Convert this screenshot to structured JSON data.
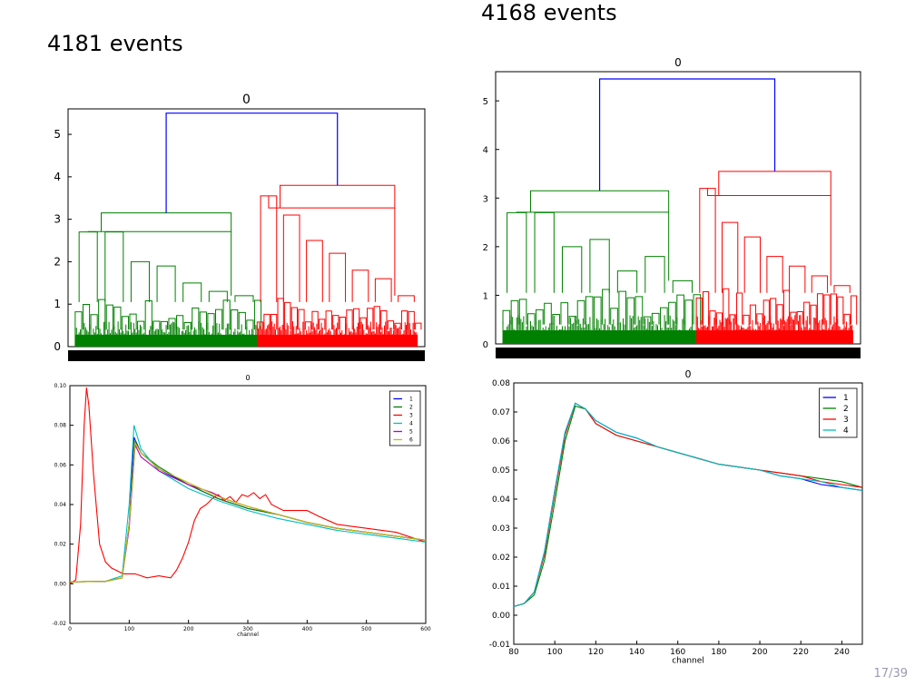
{
  "slide": {
    "left_title": "4181 events",
    "right_title": "4168 events",
    "page_number": "17/39"
  },
  "colors": {
    "link": "#0000ff",
    "cluster_a": "#008000",
    "cluster_b": "#ff0000",
    "s1": "#0000ff",
    "s2": "#008000",
    "s3": "#ff0000",
    "s4": "#00bfbf",
    "s5": "#bf00bf",
    "s6": "#bfbf00"
  },
  "chart_data": [
    {
      "type": "dendrogram",
      "title": "0",
      "ylim": [
        0,
        5.6
      ],
      "yticks": [
        "0",
        "1",
        "2",
        "3",
        "4",
        "5"
      ],
      "root_height": 5.5,
      "left_height": 3.15,
      "left_span": [
        0.02,
        0.55
      ],
      "left_top_x": 0.22,
      "right_height": 3.8,
      "right_span": [
        0.53,
        0.98
      ],
      "right_top_x": 0.59,
      "split_x": 0.53,
      "clusters": [
        {
          "name": "green",
          "color_key": "cluster_a",
          "heights": [
            2.7,
            2.7,
            2.0,
            1.9,
            1.5,
            1.3,
            1.2
          ]
        },
        {
          "name": "red",
          "color_key": "cluster_b",
          "heights": [
            3.55,
            3.1,
            2.5,
            2.2,
            1.8,
            1.6,
            1.2
          ]
        }
      ]
    },
    {
      "type": "dendrogram",
      "title": "0",
      "ylim": [
        0,
        5.6
      ],
      "yticks": [
        "0",
        "1",
        "2",
        "3",
        "4",
        "5"
      ],
      "root_height": 5.45,
      "left_height": 3.15,
      "left_span": [
        0.02,
        0.55
      ],
      "left_top_x": 0.23,
      "right_height": 3.55,
      "right_span": [
        0.55,
        0.98
      ],
      "right_top_x": 0.69,
      "split_x": 0.55,
      "clusters": [
        {
          "name": "green",
          "color_key": "cluster_a",
          "heights": [
            2.7,
            2.7,
            2.0,
            2.15,
            1.5,
            1.8,
            1.3
          ]
        },
        {
          "name": "red",
          "color_key": "cluster_b",
          "heights": [
            3.2,
            2.5,
            2.2,
            1.8,
            1.6,
            1.4,
            1.2
          ]
        }
      ]
    },
    {
      "type": "line",
      "title": "0",
      "xlabel": "channel",
      "ylabel": "",
      "xlim": [
        0,
        600
      ],
      "ylim": [
        -0.02,
        0.1
      ],
      "xticks": [
        0,
        100,
        200,
        300,
        400,
        500,
        600
      ],
      "yticks": [
        -0.02,
        0.0,
        0.02,
        0.04,
        0.06,
        0.08,
        0.1
      ],
      "ytick_labels": [
        "-0.02",
        "0.00",
        "0.02",
        "0.04",
        "0.06",
        "0.08",
        "0.10"
      ],
      "legend": "top-right",
      "series": [
        {
          "name": "1",
          "color_key": "s1",
          "points": [
            [
              0,
              0.001
            ],
            [
              60,
              0.0012
            ],
            [
              88,
              0.003
            ],
            [
              100,
              0.03
            ],
            [
              108,
              0.074
            ],
            [
              120,
              0.066
            ],
            [
              150,
              0.058
            ],
            [
              200,
              0.05
            ],
            [
              250,
              0.043
            ],
            [
              300,
              0.038
            ],
            [
              350,
              0.035
            ],
            [
              400,
              0.031
            ],
            [
              450,
              0.028
            ],
            [
              500,
              0.026
            ],
            [
              550,
              0.024
            ],
            [
              600,
              0.022
            ]
          ]
        },
        {
          "name": "2",
          "color_key": "s2",
          "points": [
            [
              0,
              0.001
            ],
            [
              60,
              0.0012
            ],
            [
              88,
              0.003
            ],
            [
              100,
              0.03
            ],
            [
              110,
              0.072
            ],
            [
              120,
              0.066
            ],
            [
              150,
              0.059
            ],
            [
              200,
              0.05
            ],
            [
              250,
              0.043
            ],
            [
              300,
              0.038
            ],
            [
              350,
              0.035
            ],
            [
              400,
              0.031
            ],
            [
              450,
              0.028
            ],
            [
              500,
              0.026
            ],
            [
              550,
              0.024
            ],
            [
              600,
              0.022
            ]
          ]
        },
        {
          "name": "3",
          "color_key": "s3",
          "points": [
            [
              0,
              0.0
            ],
            [
              10,
              0.002
            ],
            [
              18,
              0.03
            ],
            [
              24,
              0.08
            ],
            [
              28,
              0.099
            ],
            [
              32,
              0.09
            ],
            [
              40,
              0.055
            ],
            [
              50,
              0.02
            ],
            [
              60,
              0.011
            ],
            [
              70,
              0.008
            ],
            [
              90,
              0.005
            ],
            [
              110,
              0.005
            ],
            [
              130,
              0.003
            ],
            [
              150,
              0.004
            ],
            [
              170,
              0.003
            ],
            [
              180,
              0.007
            ],
            [
              190,
              0.013
            ],
            [
              200,
              0.021
            ],
            [
              210,
              0.032
            ],
            [
              220,
              0.038
            ],
            [
              230,
              0.04
            ],
            [
              240,
              0.043
            ],
            [
              250,
              0.045
            ],
            [
              260,
              0.042
            ],
            [
              270,
              0.044
            ],
            [
              280,
              0.041
            ],
            [
              290,
              0.045
            ],
            [
              300,
              0.044
            ],
            [
              310,
              0.046
            ],
            [
              320,
              0.043
            ],
            [
              330,
              0.045
            ],
            [
              340,
              0.04
            ],
            [
              360,
              0.037
            ],
            [
              380,
              0.037
            ],
            [
              400,
              0.037
            ],
            [
              420,
              0.034
            ],
            [
              450,
              0.03
            ],
            [
              500,
              0.028
            ],
            [
              550,
              0.026
            ],
            [
              600,
              0.021
            ]
          ]
        },
        {
          "name": "4",
          "color_key": "s4",
          "points": [
            [
              0,
              0.001
            ],
            [
              60,
              0.0012
            ],
            [
              88,
              0.004
            ],
            [
              100,
              0.04
            ],
            [
              108,
              0.08
            ],
            [
              120,
              0.068
            ],
            [
              150,
              0.057
            ],
            [
              200,
              0.048
            ],
            [
              250,
              0.042
            ],
            [
              300,
              0.037
            ],
            [
              350,
              0.033
            ],
            [
              400,
              0.03
            ],
            [
              450,
              0.027
            ],
            [
              500,
              0.025
            ],
            [
              550,
              0.023
            ],
            [
              600,
              0.021
            ]
          ]
        },
        {
          "name": "5",
          "color_key": "s5",
          "points": [
            [
              0,
              0.001
            ],
            [
              60,
              0.0012
            ],
            [
              88,
              0.003
            ],
            [
              100,
              0.028
            ],
            [
              110,
              0.07
            ],
            [
              120,
              0.064
            ],
            [
              150,
              0.057
            ],
            [
              200,
              0.05
            ],
            [
              240,
              0.046
            ],
            [
              260,
              0.043
            ],
            [
              300,
              0.039
            ],
            [
              350,
              0.035
            ],
            [
              400,
              0.031
            ],
            [
              450,
              0.028
            ],
            [
              500,
              0.026
            ],
            [
              550,
              0.024
            ],
            [
              600,
              0.022
            ]
          ]
        },
        {
          "name": "6",
          "color_key": "s6",
          "points": [
            [
              0,
              0.001
            ],
            [
              60,
              0.0012
            ],
            [
              88,
              0.003
            ],
            [
              100,
              0.03
            ],
            [
              110,
              0.071
            ],
            [
              120,
              0.066
            ],
            [
              150,
              0.058
            ],
            [
              200,
              0.051
            ],
            [
              250,
              0.044
            ],
            [
              300,
              0.039
            ],
            [
              350,
              0.035
            ],
            [
              400,
              0.031
            ],
            [
              450,
              0.028
            ],
            [
              500,
              0.026
            ],
            [
              550,
              0.024
            ],
            [
              600,
              0.022
            ]
          ]
        }
      ]
    },
    {
      "type": "line",
      "title": "0",
      "xlabel": "channel",
      "ylabel": "",
      "xlim": [
        80,
        250
      ],
      "ylim": [
        -0.01,
        0.08
      ],
      "xticks": [
        80,
        100,
        120,
        140,
        160,
        180,
        200,
        220,
        240
      ],
      "yticks": [
        -0.01,
        0.0,
        0.01,
        0.02,
        0.03,
        0.04,
        0.05,
        0.06,
        0.07,
        0.08
      ],
      "ytick_labels": [
        "-0.01",
        "0.00",
        "0.01",
        "0.02",
        "0.03",
        "0.04",
        "0.05",
        "0.06",
        "0.07",
        "0.08"
      ],
      "legend": "top-right",
      "series": [
        {
          "name": "1",
          "color_key": "s1",
          "points": [
            [
              80,
              0.003
            ],
            [
              85,
              0.004
            ],
            [
              90,
              0.008
            ],
            [
              95,
              0.022
            ],
            [
              100,
              0.043
            ],
            [
              105,
              0.063
            ],
            [
              110,
              0.073
            ],
            [
              115,
              0.071
            ],
            [
              120,
              0.067
            ],
            [
              130,
              0.063
            ],
            [
              140,
              0.061
            ],
            [
              150,
              0.058
            ],
            [
              160,
              0.056
            ],
            [
              170,
              0.054
            ],
            [
              180,
              0.052
            ],
            [
              190,
              0.051
            ],
            [
              200,
              0.05
            ],
            [
              210,
              0.048
            ],
            [
              220,
              0.047
            ],
            [
              230,
              0.045
            ],
            [
              240,
              0.044
            ],
            [
              250,
              0.043
            ]
          ]
        },
        {
          "name": "2",
          "color_key": "s2",
          "points": [
            [
              80,
              0.003
            ],
            [
              85,
              0.004
            ],
            [
              90,
              0.007
            ],
            [
              95,
              0.019
            ],
            [
              100,
              0.039
            ],
            [
              105,
              0.06
            ],
            [
              110,
              0.072
            ],
            [
              115,
              0.071
            ],
            [
              120,
              0.066
            ],
            [
              130,
              0.062
            ],
            [
              140,
              0.06
            ],
            [
              150,
              0.058
            ],
            [
              160,
              0.056
            ],
            [
              170,
              0.054
            ],
            [
              180,
              0.052
            ],
            [
              190,
              0.051
            ],
            [
              200,
              0.05
            ],
            [
              210,
              0.049
            ],
            [
              220,
              0.048
            ],
            [
              230,
              0.047
            ],
            [
              240,
              0.046
            ],
            [
              250,
              0.044
            ]
          ]
        },
        {
          "name": "3",
          "color_key": "s3",
          "points": [
            [
              80,
              0.003
            ],
            [
              85,
              0.004
            ],
            [
              90,
              0.008
            ],
            [
              95,
              0.021
            ],
            [
              100,
              0.042
            ],
            [
              105,
              0.062
            ],
            [
              110,
              0.073
            ],
            [
              115,
              0.071
            ],
            [
              120,
              0.066
            ],
            [
              130,
              0.062
            ],
            [
              140,
              0.06
            ],
            [
              150,
              0.058
            ],
            [
              160,
              0.056
            ],
            [
              170,
              0.054
            ],
            [
              180,
              0.052
            ],
            [
              190,
              0.051
            ],
            [
              200,
              0.05
            ],
            [
              210,
              0.049
            ],
            [
              220,
              0.048
            ],
            [
              230,
              0.046
            ],
            [
              240,
              0.045
            ],
            [
              250,
              0.044
            ]
          ]
        },
        {
          "name": "4",
          "color_key": "s4",
          "points": [
            [
              80,
              0.003
            ],
            [
              85,
              0.004
            ],
            [
              90,
              0.008
            ],
            [
              95,
              0.022
            ],
            [
              100,
              0.043
            ],
            [
              105,
              0.063
            ],
            [
              110,
              0.073
            ],
            [
              115,
              0.071
            ],
            [
              120,
              0.067
            ],
            [
              130,
              0.063
            ],
            [
              140,
              0.061
            ],
            [
              150,
              0.058
            ],
            [
              160,
              0.056
            ],
            [
              170,
              0.054
            ],
            [
              180,
              0.052
            ],
            [
              190,
              0.051
            ],
            [
              200,
              0.05
            ],
            [
              210,
              0.048
            ],
            [
              220,
              0.047
            ],
            [
              230,
              0.046
            ],
            [
              240,
              0.044
            ],
            [
              250,
              0.043
            ]
          ]
        }
      ]
    }
  ]
}
